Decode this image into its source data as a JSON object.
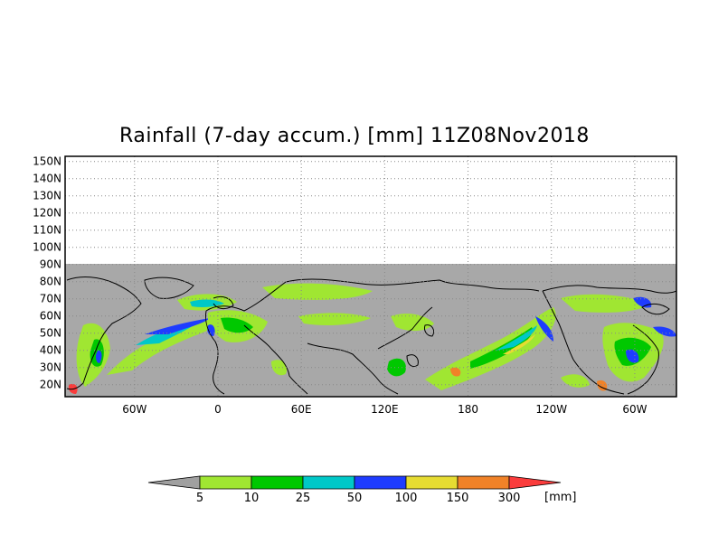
{
  "title": "Rainfall (7-day accum.) [mm] 11Z08Nov2018",
  "map": {
    "projection": "cylindrical equidistant",
    "lat_range": [
      13,
      153
    ],
    "data_lat_max": 90,
    "lon_range": [
      -110,
      330
    ],
    "missing_color": "#a8a8a8",
    "grid": "dotted",
    "lat_ticks": [
      "20N",
      "30N",
      "40N",
      "50N",
      "60N",
      "70N",
      "80N",
      "90N",
      "100N",
      "110N",
      "120N",
      "130N",
      "140N",
      "150N"
    ],
    "lon_ticks": [
      "60W",
      "0",
      "60E",
      "120E",
      "180",
      "120W",
      "60W"
    ]
  },
  "colorbar": {
    "unit_label": "[mm]",
    "levels": [
      "5",
      "10",
      "25",
      "50",
      "100",
      "150",
      "300"
    ],
    "colors": [
      "#a0a0a0",
      "#a0e632",
      "#00c800",
      "#00c8c8",
      "#1e3cff",
      "#e6dc32",
      "#f08228",
      "#fa3c3c"
    ]
  }
}
